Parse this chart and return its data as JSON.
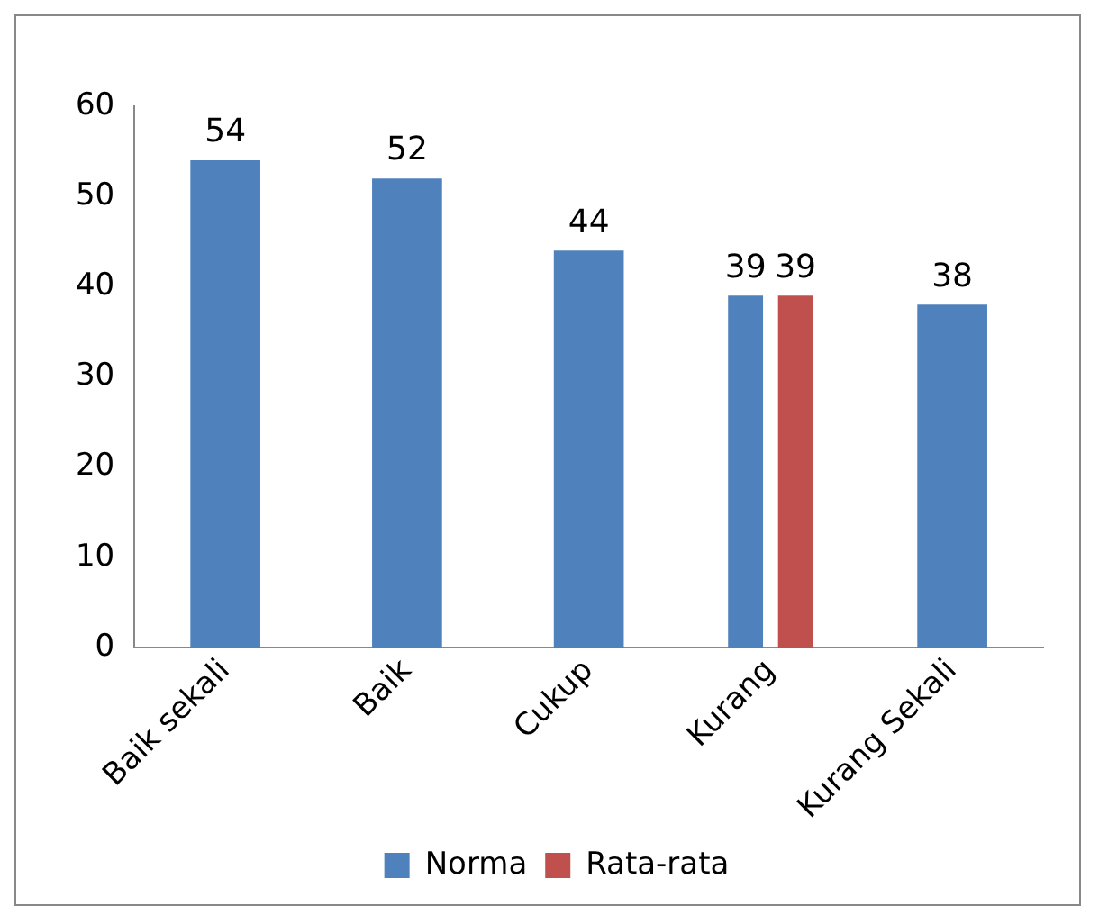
{
  "chart_data": {
    "type": "bar",
    "categories": [
      "Baik sekali",
      "Baik",
      "Cukup",
      "Kurang",
      "Kurang Sekali"
    ],
    "series": [
      {
        "name": "Norma",
        "color": "#4f81bd",
        "values": [
          54,
          52,
          44,
          39,
          38
        ]
      },
      {
        "name": "Rata-rata",
        "color": "#c0504d",
        "values": [
          null,
          null,
          null,
          39,
          null
        ]
      }
    ],
    "ylim": [
      0,
      60
    ],
    "yticks": [
      0,
      10,
      20,
      30,
      40,
      50,
      60
    ],
    "grid": false,
    "legend": "bottom",
    "data_labels": true
  }
}
